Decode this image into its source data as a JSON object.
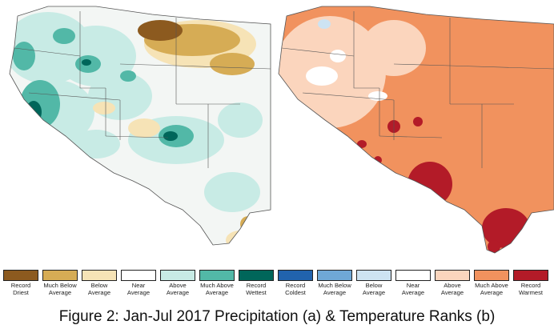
{
  "caption": "Figure 2: Jan-Jul 2017 Precipitation (a) & Temperature Ranks (b)",
  "maps": [
    {
      "name": "precipitation-rank-map",
      "base_color": "#f3f6f4"
    },
    {
      "name": "temperature-rank-map",
      "base_color": "#f1925e"
    }
  ],
  "precipitation_legend": [
    {
      "label": "Record Driest",
      "color": "#8c5a1f"
    },
    {
      "label": "Much Below Average",
      "color": "#d6ac55"
    },
    {
      "label": "Below Average",
      "color": "#f6e3b6"
    },
    {
      "label": "Near Average",
      "color": "#ffffff"
    },
    {
      "label": "Above Average",
      "color": "#c8ebe5"
    },
    {
      "label": "Much Above Average",
      "color": "#52b8a7"
    },
    {
      "label": "Record Wettest",
      "color": "#00665a"
    }
  ],
  "temperature_legend": [
    {
      "label": "Record Coldest",
      "color": "#2163ad"
    },
    {
      "label": "Much Below Average",
      "color": "#6fa8d6"
    },
    {
      "label": "Below Average",
      "color": "#cde3f2"
    },
    {
      "label": "Near Average",
      "color": "#ffffff"
    },
    {
      "label": "Above Average",
      "color": "#fbd5bd"
    },
    {
      "label": "Much Above Average",
      "color": "#f1925e"
    },
    {
      "label": "Record Warmest",
      "color": "#b31b28"
    }
  ]
}
